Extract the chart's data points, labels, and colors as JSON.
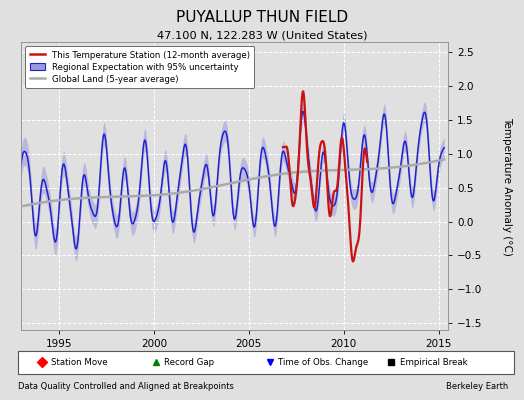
{
  "title": "PUYALLUP THUN FIELD",
  "subtitle": "47.100 N, 122.283 W (United States)",
  "ylabel": "Temperature Anomaly (°C)",
  "xlabel_left": "Data Quality Controlled and Aligned at Breakpoints",
  "xlabel_right": "Berkeley Earth",
  "xlim": [
    1993.0,
    2015.5
  ],
  "ylim": [
    -1.6,
    2.65
  ],
  "yticks": [
    -1.5,
    -1.0,
    -0.5,
    0.0,
    0.5,
    1.0,
    1.5,
    2.0,
    2.5
  ],
  "xticks": [
    1995,
    2000,
    2005,
    2010,
    2015
  ],
  "bg_color": "#e0e0e0",
  "grid_color": "#ffffff",
  "regional_color": "#2222cc",
  "regional_fill": "#9999dd",
  "station_color": "#cc1111",
  "global_color": "#aaaaaa",
  "legend_station": "This Temperature Station (12-month average)",
  "legend_regional": "Regional Expectation with 95% uncertainty",
  "legend_global": "Global Land (5-year average)",
  "marker_labels": [
    "Station Move",
    "Record Gap",
    "Time of Obs. Change",
    "Empirical Break"
  ],
  "marker_colors": [
    "red",
    "green",
    "blue",
    "black"
  ],
  "marker_symbols": [
    "D",
    "^",
    "v",
    "s"
  ]
}
